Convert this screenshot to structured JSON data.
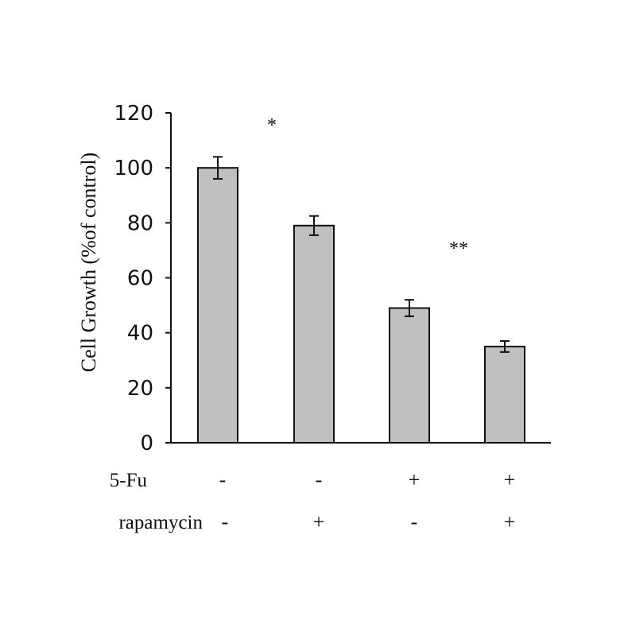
{
  "chart_data": {
    "type": "bar",
    "ylabel": "Cell Growth (%of control)",
    "xlabel": "",
    "ylim": [
      0,
      120
    ],
    "yticks": [
      0,
      20,
      40,
      60,
      80,
      100,
      120
    ],
    "bar_color": "#c0c0c0",
    "bar_edge_color": "#111111",
    "values": [
      100,
      79,
      49,
      35
    ],
    "errors": [
      4,
      3.5,
      3,
      2
    ],
    "annotations": [
      {
        "text": "*",
        "near_bar": 0
      },
      {
        "text": "**",
        "near_bar": 2
      }
    ],
    "treatments": [
      {
        "label": "5-Fu",
        "signs": [
          "-",
          "-",
          "+",
          "+"
        ]
      },
      {
        "label": "rapamycin",
        "signs": [
          "-",
          "+",
          "-",
          "+"
        ]
      }
    ]
  }
}
